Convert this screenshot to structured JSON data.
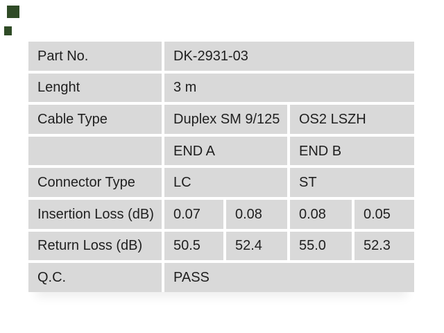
{
  "page": {
    "background_color": "#ffffff"
  },
  "logo_marks": {
    "color": "#2f4b26",
    "items": [
      {
        "name": "green-square-large"
      },
      {
        "name": "green-square-small"
      }
    ]
  },
  "colors": {
    "cell_background": "#d9d9d9",
    "cell_text": "#1f1f1f",
    "grid_gap": "#ffffff"
  },
  "spec_table": {
    "columns": 5,
    "rows": [
      {
        "label": "Part No.",
        "values": [
          {
            "text": "DK-2931-03",
            "span": 4
          }
        ]
      },
      {
        "label": "Lenght",
        "values": [
          {
            "text": "3 m",
            "span": 4
          }
        ]
      },
      {
        "label": "Cable Type",
        "values": [
          {
            "text": "Duplex SM 9/125",
            "span": 2
          },
          {
            "text": "OS2 LSZH",
            "span": 2
          }
        ]
      },
      {
        "label": "",
        "values": [
          {
            "text": "END A",
            "span": 2
          },
          {
            "text": "END B",
            "span": 2
          }
        ]
      },
      {
        "label": "Connector Type",
        "values": [
          {
            "text": "LC",
            "span": 2
          },
          {
            "text": "ST",
            "span": 2
          }
        ]
      },
      {
        "label": "Insertion Loss (dB)",
        "values": [
          {
            "text": "0.07",
            "span": 1
          },
          {
            "text": "0.08",
            "span": 1
          },
          {
            "text": "0.08",
            "span": 1
          },
          {
            "text": "0.05",
            "span": 1
          }
        ]
      },
      {
        "label": "Return Loss (dB)",
        "values": [
          {
            "text": "50.5",
            "span": 1
          },
          {
            "text": "52.4",
            "span": 1
          },
          {
            "text": "55.0",
            "span": 1
          },
          {
            "text": "52.3",
            "span": 1
          }
        ]
      },
      {
        "label": "Q.C.",
        "values": [
          {
            "text": "PASS",
            "span": 4
          }
        ]
      }
    ]
  }
}
